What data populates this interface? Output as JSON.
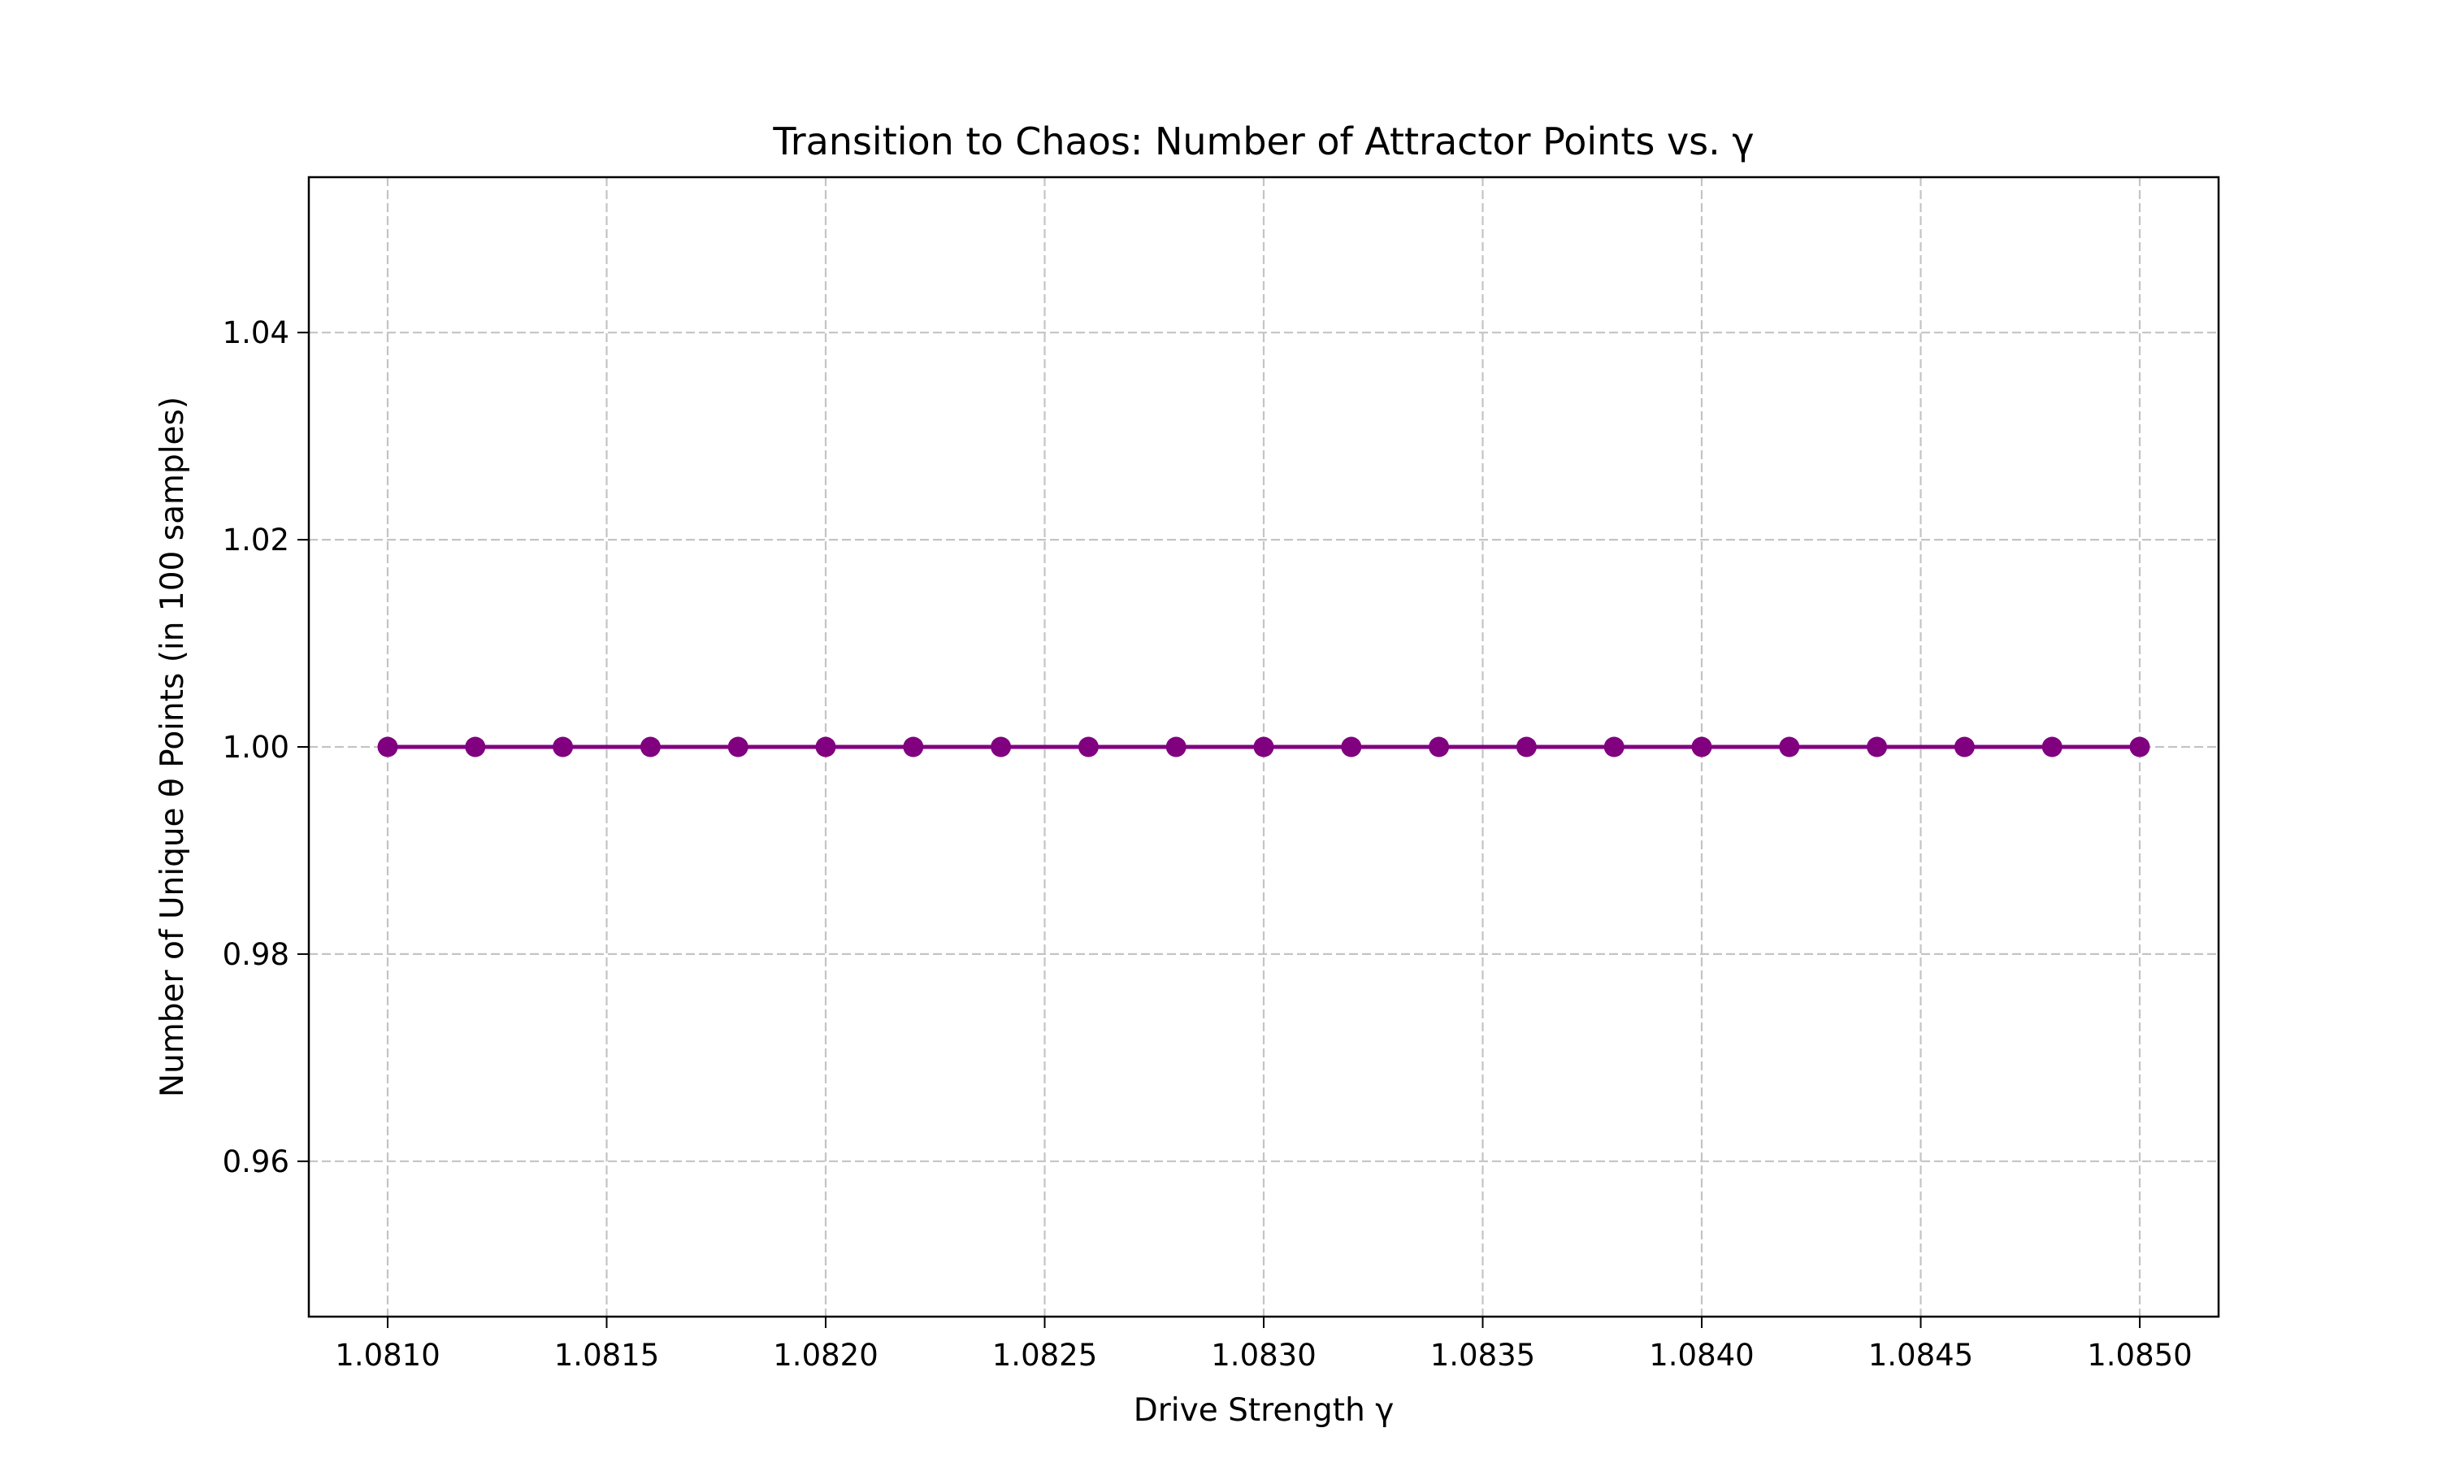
{
  "chart_data": {
    "type": "line",
    "title": "Transition to Chaos: Number of Attractor Points vs. γ",
    "xlabel": "Drive Strength γ",
    "ylabel": "Number of Unique θ Points (in 100 samples)",
    "xlim": [
      1.08082,
      1.08518
    ],
    "ylim": [
      0.945,
      1.055
    ],
    "xticks": [
      1.081,
      1.0815,
      1.082,
      1.0825,
      1.083,
      1.0835,
      1.084,
      1.0845,
      1.085
    ],
    "xtick_labels": [
      "1.0810",
      "1.0815",
      "1.0820",
      "1.0825",
      "1.0830",
      "1.0835",
      "1.0840",
      "1.0845",
      "1.0850"
    ],
    "yticks": [
      0.96,
      0.98,
      1.0,
      1.02,
      1.04
    ],
    "ytick_labels": [
      "0.96",
      "0.98",
      "1.00",
      "1.02",
      "1.04"
    ],
    "grid": true,
    "grid_style": "dashed",
    "line_color": "#800080",
    "series": [
      {
        "x": [
          1.081,
          1.0812,
          1.0814,
          1.0816,
          1.0818,
          1.082,
          1.0822,
          1.0824,
          1.0826,
          1.0828,
          1.083,
          1.0832,
          1.0834,
          1.0836,
          1.0838,
          1.084,
          1.0842,
          1.0844,
          1.0846,
          1.0848,
          1.085
        ],
        "values": [
          1,
          1,
          1,
          1,
          1,
          1,
          1,
          1,
          1,
          1,
          1,
          1,
          1,
          1,
          1,
          1,
          1,
          1,
          1,
          1,
          1
        ]
      }
    ]
  }
}
